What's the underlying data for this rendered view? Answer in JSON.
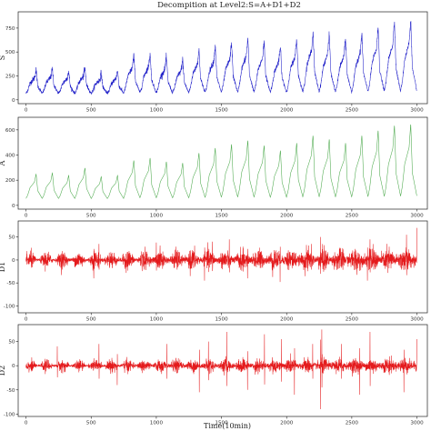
{
  "figure": {
    "title": "Decompition at Level2:S=A+D1+D2",
    "xlabel": "Time(10min)"
  },
  "chart_data": [
    {
      "type": "line",
      "ylabel": "S",
      "color": "#1f1fc8",
      "xlim": [
        -60,
        3080
      ],
      "ylim": [
        -40,
        920
      ],
      "xticks": [
        0,
        500,
        1000,
        1500,
        2000,
        2500,
        3000
      ],
      "yticks": [
        0,
        250,
        500,
        750
      ],
      "n_points": 3000,
      "cycles": 24,
      "peak_values": [
        310,
        320,
        300,
        330,
        280,
        300,
        460,
        480,
        440,
        420,
        520,
        560,
        600,
        640,
        610,
        560,
        640,
        720,
        680,
        640,
        700,
        760,
        820,
        840
      ],
      "baseline": 55,
      "noise_amplitude": 45
    },
    {
      "type": "line",
      "ylabel": "A",
      "color": "#4aa84a",
      "xlim": [
        -60,
        3080
      ],
      "ylim": [
        -30,
        700
      ],
      "xticks": [
        0,
        500,
        1000,
        1500,
        2000,
        2500,
        3000
      ],
      "yticks": [
        0,
        200,
        400,
        600
      ],
      "n_points": 3000,
      "cycles": 24,
      "peak_values": [
        250,
        260,
        240,
        300,
        230,
        240,
        360,
        380,
        350,
        340,
        420,
        460,
        490,
        520,
        480,
        440,
        500,
        560,
        530,
        500,
        560,
        600,
        640,
        650
      ],
      "baseline": 45,
      "noise_amplitude": 0
    },
    {
      "type": "line",
      "ylabel": "D1",
      "color": "#e41a1c",
      "xlim": [
        -60,
        3080
      ],
      "ylim": [
        -115,
        85
      ],
      "xticks": [
        0,
        500,
        1000,
        1500,
        2000,
        2500,
        3000
      ],
      "yticks": [
        -100,
        -50,
        0,
        50
      ],
      "n_points": 3000,
      "noise_amplitude": 22,
      "spikes": [
        [
          520,
          -40
        ],
        [
          560,
          35
        ],
        [
          1000,
          38
        ],
        [
          1260,
          -35
        ],
        [
          1370,
          -45
        ],
        [
          1430,
          40
        ],
        [
          1560,
          45
        ],
        [
          1700,
          -40
        ],
        [
          1950,
          -48
        ],
        [
          2190,
          35
        ],
        [
          2260,
          50
        ],
        [
          2620,
          -45
        ],
        [
          2640,
          45
        ],
        [
          2920,
          55
        ],
        [
          3010,
          -105
        ],
        [
          3020,
          70
        ]
      ]
    },
    {
      "type": "line",
      "ylabel": "D2",
      "color": "#e41a1c",
      "xlim": [
        -60,
        3080
      ],
      "ylim": [
        -105,
        85
      ],
      "xticks": [
        0,
        500,
        1000,
        1500,
        2000,
        2500,
        3000
      ],
      "yticks": [
        -100,
        -50,
        0,
        50
      ],
      "n_points": 3000,
      "noise_amplitude": 14,
      "spikes": [
        [
          240,
          40
        ],
        [
          560,
          45
        ],
        [
          700,
          -40
        ],
        [
          1080,
          45
        ],
        [
          1330,
          -55
        ],
        [
          1400,
          50
        ],
        [
          1540,
          70
        ],
        [
          1700,
          -50
        ],
        [
          1830,
          65
        ],
        [
          1960,
          55
        ],
        [
          2060,
          -60
        ],
        [
          2200,
          45
        ],
        [
          2260,
          -90
        ],
        [
          2270,
          75
        ],
        [
          2420,
          45
        ],
        [
          2560,
          -60
        ],
        [
          2640,
          70
        ],
        [
          2900,
          -55
        ],
        [
          3000,
          55
        ]
      ]
    }
  ]
}
